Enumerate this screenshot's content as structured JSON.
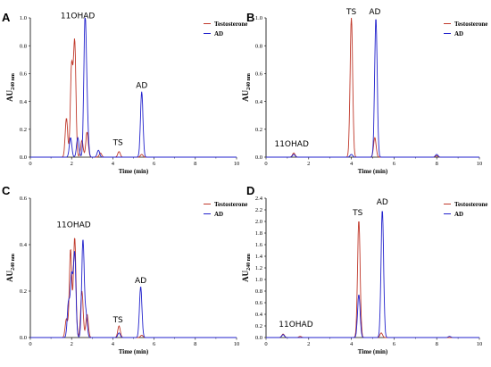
{
  "colors": {
    "testosterone": "#c0392b",
    "ad": "#2222cc"
  },
  "chart_data": [
    {
      "type": "line",
      "panel": "A",
      "xlabel": "Time (min)",
      "ylabel": "AU",
      "ylabel_sub": "240 nm",
      "xlim": [
        0,
        10
      ],
      "ylim": [
        0,
        1.0
      ],
      "yticks": [
        "0.0",
        "0.2",
        "0.4",
        "0.6",
        "0.8",
        "1.0"
      ],
      "xticks": [
        "0",
        "2",
        "4",
        "6",
        "8",
        "10"
      ],
      "legend": [
        "Testosterone",
        "AD"
      ],
      "annotations": [
        {
          "text": "11OHAD",
          "x": 2.3,
          "y": 0.97
        },
        {
          "text": "TS",
          "x": 4.25,
          "y": 0.06
        },
        {
          "text": "AD",
          "x": 5.4,
          "y": 0.47
        }
      ],
      "series": [
        {
          "name": "Testosterone",
          "peaks": [
            [
              1.75,
              0.28
            ],
            [
              2.0,
              0.65
            ],
            [
              2.15,
              0.82
            ],
            [
              2.5,
              0.12
            ],
            [
              2.75,
              0.18
            ],
            [
              3.4,
              0.03
            ],
            [
              4.3,
              0.04
            ],
            [
              5.4,
              0.02
            ]
          ]
        },
        {
          "name": "AD",
          "peaks": [
            [
              1.95,
              0.14
            ],
            [
              2.3,
              0.14
            ],
            [
              2.65,
              0.95
            ],
            [
              2.75,
              0.28
            ],
            [
              3.3,
              0.05
            ],
            [
              5.4,
              0.47
            ]
          ]
        }
      ]
    },
    {
      "type": "line",
      "panel": "B",
      "xlabel": "Time (min)",
      "ylabel": "AU",
      "ylabel_sub": "240 nm",
      "xlim": [
        0,
        10
      ],
      "ylim": [
        0,
        1.0
      ],
      "yticks": [
        "0.0",
        "0.2",
        "0.4",
        "0.6",
        "0.8",
        "1.0"
      ],
      "xticks": [
        "0",
        "2",
        "4",
        "6",
        "8",
        "10"
      ],
      "legend": [
        "Testosterone",
        "AD"
      ],
      "annotations": [
        {
          "text": "11OHAD",
          "x": 1.2,
          "y": 0.05
        },
        {
          "text": "TS",
          "x": 4.0,
          "y": 1.0
        },
        {
          "text": "AD",
          "x": 5.1,
          "y": 1.0
        }
      ],
      "series": [
        {
          "name": "Testosterone",
          "peaks": [
            [
              1.3,
              0.03
            ],
            [
              4.0,
              1.0
            ],
            [
              5.1,
              0.14
            ],
            [
              8.0,
              0.01
            ]
          ]
        },
        {
          "name": "AD",
          "peaks": [
            [
              1.3,
              0.02
            ],
            [
              4.0,
              0.02
            ],
            [
              5.15,
              1.0
            ],
            [
              8.0,
              0.02
            ]
          ]
        }
      ]
    },
    {
      "type": "line",
      "panel": "C",
      "xlabel": "Time (min)",
      "ylabel": "AU",
      "ylabel_sub": "240 nm",
      "xlim": [
        0,
        10
      ],
      "ylim": [
        0,
        0.6
      ],
      "yticks": [
        "0.0",
        "0.2",
        "0.4",
        "0.6"
      ],
      "xticks": [
        "0",
        "2",
        "4",
        "6",
        "8",
        "10"
      ],
      "legend": [
        "Testosterone",
        "AD"
      ],
      "annotations": [
        {
          "text": "11OHAD",
          "x": 2.1,
          "y": 0.46
        },
        {
          "text": "TS",
          "x": 4.25,
          "y": 0.05
        },
        {
          "text": "AD",
          "x": 5.35,
          "y": 0.22
        }
      ],
      "series": [
        {
          "name": "Testosterone",
          "peaks": [
            [
              1.75,
              0.08
            ],
            [
              1.95,
              0.38
            ],
            [
              2.15,
              0.43
            ],
            [
              2.5,
              0.2
            ],
            [
              2.75,
              0.1
            ],
            [
              4.3,
              0.05
            ],
            [
              5.4,
              0.01
            ]
          ]
        },
        {
          "name": "AD",
          "peaks": [
            [
              1.85,
              0.15
            ],
            [
              2.0,
              0.26
            ],
            [
              2.15,
              0.36
            ],
            [
              2.55,
              0.42
            ],
            [
              2.7,
              0.1
            ],
            [
              4.3,
              0.02
            ],
            [
              5.35,
              0.22
            ]
          ]
        }
      ]
    },
    {
      "type": "line",
      "panel": "D",
      "xlabel": "Time (min)",
      "ylabel": "AU",
      "ylabel_sub": "240 nm",
      "xlim": [
        0,
        10
      ],
      "ylim": [
        0,
        2.4
      ],
      "yticks": [
        "0.0",
        "0.2",
        "0.4",
        "0.6",
        "0.8",
        "1.0",
        "1.2",
        "1.4",
        "1.6",
        "1.8",
        "2.0",
        "2.2",
        "2.4"
      ],
      "xticks": [
        "0",
        "2",
        "4",
        "6",
        "8",
        "10"
      ],
      "legend": [
        "Testosterone",
        "AD"
      ],
      "annotations": [
        {
          "text": "11OHAD",
          "x": 1.4,
          "y": 0.12
        },
        {
          "text": "TS",
          "x": 4.3,
          "y": 2.05
        },
        {
          "text": "AD",
          "x": 5.45,
          "y": 2.23
        }
      ],
      "series": [
        {
          "name": "Testosterone",
          "peaks": [
            [
              0.8,
              0.06
            ],
            [
              1.6,
              0.02
            ],
            [
              4.35,
              2.02
            ],
            [
              5.4,
              0.08
            ]
          ]
        },
        {
          "name": "AD",
          "peaks": [
            [
              0.8,
              0.05
            ],
            [
              4.35,
              0.74
            ],
            [
              5.45,
              2.2
            ],
            [
              8.6,
              0.02
            ]
          ]
        }
      ]
    }
  ]
}
